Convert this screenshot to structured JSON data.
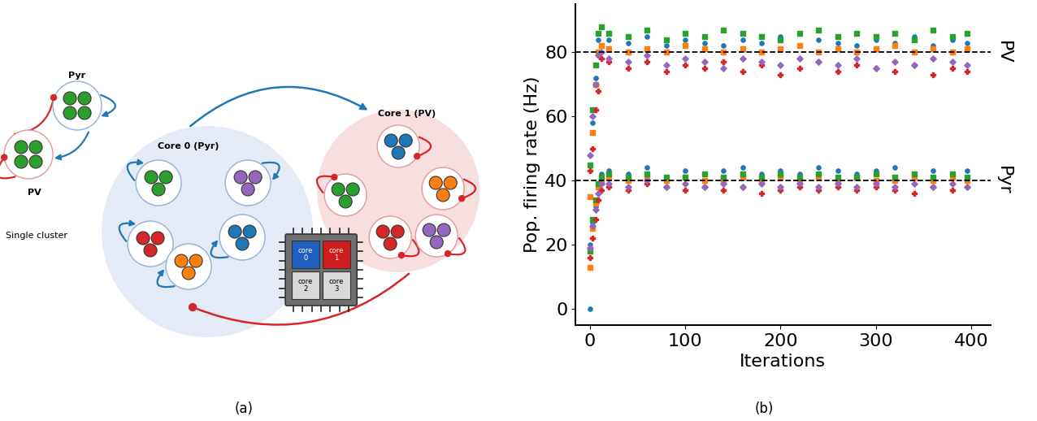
{
  "figure": {
    "panel_labels": [
      "(a)",
      "(b)"
    ]
  },
  "diagram": {
    "single_cluster": {
      "caption": "Single cluster",
      "populations": [
        {
          "label": "Pyr",
          "color": "#2ca02c"
        },
        {
          "label": "PV",
          "color": "#2ca02c"
        }
      ]
    },
    "cores": [
      {
        "label": "Core 0 (Pyr)",
        "clusters": [
          "#2ca02c",
          "#9467bd",
          "#d62728",
          "#1f77b4",
          "#ff7f0e"
        ]
      },
      {
        "label": "Core 1 (PV)",
        "clusters": [
          "#1f77b4",
          "#ff7f0e",
          "#2ca02c",
          "#d62728",
          "#9467bd"
        ]
      }
    ],
    "chip": {
      "cores": [
        {
          "label": "core\n0",
          "color": "#1f5fbf"
        },
        {
          "label": "core\n1",
          "color": "#d01c1c"
        },
        {
          "label": "core\n2",
          "color": "#d9d9d9"
        },
        {
          "label": "core\n3",
          "color": "#d9d9d9"
        }
      ]
    }
  },
  "chart_data": {
    "type": "scatter",
    "xlabel": "Iterations",
    "ylabel": "Pop. firing rate (Hz)",
    "xlim": [
      -15,
      420
    ],
    "ylim": [
      -5,
      95
    ],
    "xticks": [
      0,
      100,
      200,
      300,
      400
    ],
    "yticks": [
      0,
      20,
      40,
      60,
      80
    ],
    "grid": false,
    "reference_lines": [
      {
        "value": 80,
        "label": "PV",
        "line_style": "dashed"
      },
      {
        "value": 40,
        "label": "Pyr",
        "line_style": "dashed"
      }
    ],
    "x": [
      0,
      3,
      6,
      9,
      12,
      20,
      40,
      60,
      80,
      100,
      120,
      140,
      160,
      180,
      200,
      220,
      240,
      260,
      280,
      300,
      320,
      340,
      360,
      380,
      396
    ],
    "series": [
      {
        "color": "#1f77b4",
        "marker": "circle",
        "values": [
          0,
          58,
          72,
          84,
          88,
          84,
          83,
          85,
          82,
          84,
          83,
          82,
          84,
          83,
          85,
          82,
          84,
          83,
          82,
          84,
          83,
          85,
          82,
          84,
          83
        ]
      },
      {
        "color": "#ff7f0e",
        "marker": "square",
        "values": [
          35,
          55,
          70,
          80,
          82,
          81,
          80,
          81,
          80,
          82,
          81,
          80,
          81,
          80,
          81,
          82,
          80,
          81,
          80,
          81,
          82,
          80,
          81,
          80,
          81
        ]
      },
      {
        "color": "#2ca02c",
        "marker": "square",
        "values": [
          45,
          62,
          76,
          86,
          88,
          86,
          85,
          87,
          84,
          86,
          85,
          87,
          86,
          85,
          84,
          86,
          87,
          85,
          86,
          85,
          86,
          84,
          87,
          85,
          86
        ]
      },
      {
        "color": "#d62728",
        "marker": "plus",
        "values": [
          43,
          50,
          62,
          68,
          78,
          77,
          75,
          77,
          74,
          76,
          75,
          77,
          74,
          76,
          73,
          75,
          77,
          74,
          76,
          75,
          74,
          76,
          73,
          75,
          74
        ]
      },
      {
        "color": "#9467bd",
        "marker": "diamond",
        "values": [
          48,
          60,
          70,
          79,
          80,
          78,
          77,
          79,
          76,
          78,
          77,
          75,
          78,
          77,
          76,
          78,
          77,
          76,
          78,
          75,
          77,
          76,
          78,
          77,
          76
        ]
      },
      {
        "color": "#1f77b4",
        "marker": "circle",
        "values": [
          20,
          27,
          32,
          38,
          42,
          43,
          42,
          44,
          41,
          43,
          42,
          43,
          44,
          42,
          43,
          42,
          44,
          43,
          42,
          43,
          44,
          42,
          43,
          42,
          43
        ]
      },
      {
        "color": "#ff7f0e",
        "marker": "square",
        "values": [
          13,
          25,
          33,
          38,
          40,
          41,
          40,
          41,
          40,
          41,
          40,
          40,
          41,
          40,
          41,
          40,
          41,
          40,
          41,
          40,
          40,
          41,
          40,
          41,
          40
        ]
      },
      {
        "color": "#2ca02c",
        "marker": "square",
        "values": [
          18,
          28,
          34,
          39,
          41,
          42,
          41,
          42,
          41,
          41,
          42,
          41,
          42,
          41,
          42,
          41,
          42,
          41,
          41,
          42,
          41,
          42,
          41,
          42,
          41
        ]
      },
      {
        "color": "#d62728",
        "marker": "plus",
        "values": [
          16,
          22,
          28,
          34,
          37,
          38,
          37,
          39,
          38,
          37,
          38,
          37,
          38,
          36,
          37,
          38,
          37,
          38,
          37,
          38,
          37,
          36,
          38,
          37,
          38
        ]
      },
      {
        "color": "#9467bd",
        "marker": "diamond",
        "values": [
          19,
          26,
          31,
          36,
          39,
          39,
          38,
          40,
          38,
          39,
          38,
          39,
          38,
          39,
          38,
          39,
          38,
          39,
          38,
          39,
          38,
          39,
          38,
          39,
          38
        ]
      }
    ]
  }
}
